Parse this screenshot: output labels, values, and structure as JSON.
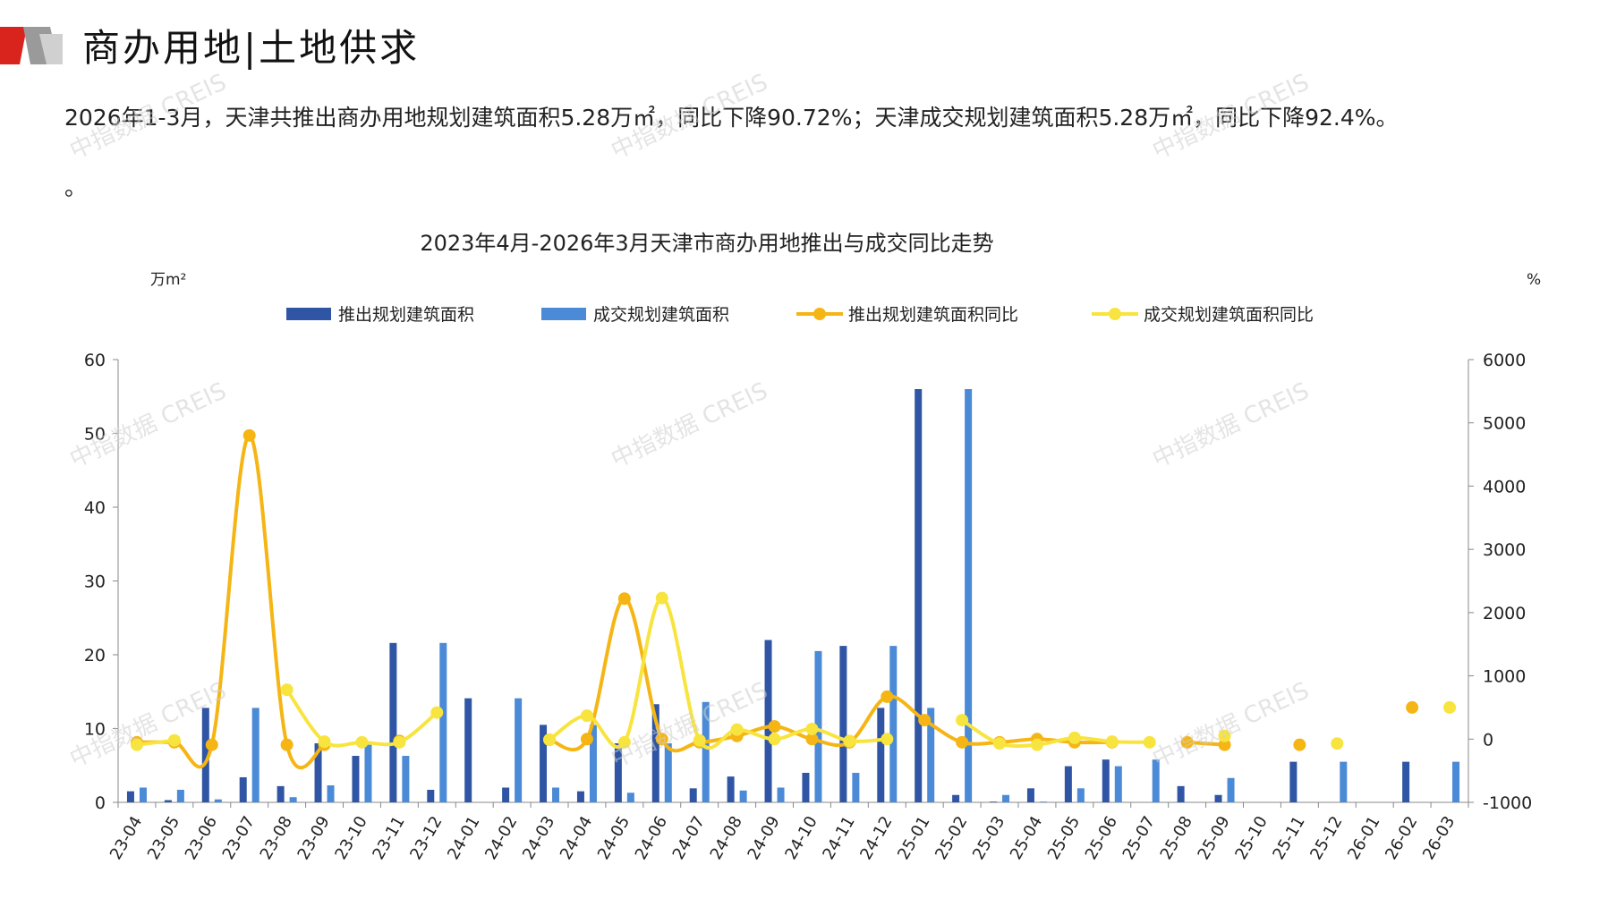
{
  "header": {
    "title": "商办用地|土地供求"
  },
  "summary": {
    "text": "2026年1-3月，天津共推出商办用地规划建筑面积5.28万㎡，同比下降90.72%；天津成交规划建筑面积5.28万㎡，同比下降92.4%。",
    "tail": "。"
  },
  "watermark": "中指数据 CREIS",
  "colors": {
    "supply": "#2f55a4",
    "deal": "#4a8ad6",
    "supply_yoy": "#f5b514",
    "deal_yoy": "#f8e43f",
    "brand": "#d9231d"
  },
  "chart_data": {
    "type": "bar",
    "title": "2023年4月-2026年3月天津市商办用地推出与成交同比走势",
    "ylabel_left": "万m²",
    "ylabel_right": "%",
    "ylim_left": [
      0,
      60
    ],
    "yticks_left": [
      "0",
      "10",
      "20",
      "30",
      "40",
      "50",
      "60"
    ],
    "ylim_right": [
      -1000,
      6000
    ],
    "yticks_right": [
      "-1000",
      "0",
      "1000",
      "2000",
      "3000",
      "4000",
      "5000",
      "6000"
    ],
    "legend_position": "top",
    "categories": [
      "23-04",
      "23-05",
      "23-06",
      "23-07",
      "23-08",
      "23-09",
      "23-10",
      "23-11",
      "23-12",
      "24-01",
      "24-02",
      "24-03",
      "24-04",
      "24-05",
      "24-06",
      "24-07",
      "24-08",
      "24-09",
      "24-10",
      "24-11",
      "24-12",
      "25-01",
      "25-02",
      "25-03",
      "25-04",
      "25-05",
      "25-06",
      "25-07",
      "25-08",
      "25-09",
      "25-10",
      "25-11",
      "25-12",
      "26-01",
      "26-02",
      "26-03"
    ],
    "series": [
      {
        "name": "推出规划建筑面积",
        "type": "bar",
        "axis": "left",
        "values": [
          1.5,
          0.3,
          12.8,
          3.4,
          2.2,
          8.0,
          6.3,
          21.6,
          1.7,
          14.1,
          2.0,
          10.5,
          1.5,
          8.0,
          13.3,
          1.9,
          3.5,
          22.0,
          4.0,
          21.2,
          12.8,
          56.0,
          1.0,
          0.1,
          1.9,
          4.9,
          5.8,
          0,
          2.2,
          1.0,
          0,
          5.5,
          0,
          0,
          5.5,
          0
        ]
      },
      {
        "name": "成交规划建筑面积",
        "type": "bar",
        "axis": "left",
        "values": [
          2.0,
          1.7,
          0.4,
          12.8,
          0.7,
          2.3,
          7.8,
          6.3,
          21.6,
          0,
          14.1,
          2.0,
          10.5,
          1.3,
          8.0,
          13.6,
          1.6,
          2.0,
          20.5,
          4.0,
          21.2,
          12.8,
          56.0,
          1.0,
          0.1,
          1.9,
          4.9,
          5.8,
          0,
          3.3,
          0,
          0,
          5.5,
          0,
          0,
          5.5
        ]
      },
      {
        "name": "推出规划建筑面积同比",
        "type": "line",
        "axis": "right",
        "values": [
          -50,
          -50,
          -90,
          4800,
          -90,
          -90,
          null,
          -30,
          null,
          null,
          null,
          -10,
          0,
          2220,
          0,
          -50,
          50,
          200,
          0,
          -50,
          670,
          300,
          -50,
          -50,
          0,
          -50,
          -50,
          null,
          -50,
          -90,
          null,
          -90,
          null,
          null,
          500,
          null
        ]
      },
      {
        "name": "成交规划建筑面积同比",
        "type": "line",
        "axis": "right",
        "values": [
          -90,
          -20,
          null,
          null,
          780,
          -40,
          -50,
          -50,
          420,
          null,
          null,
          -10,
          370,
          -50,
          2230,
          -20,
          150,
          0,
          160,
          -30,
          0,
          null,
          300,
          -70,
          -90,
          20,
          -40,
          -50,
          null,
          50,
          null,
          null,
          -70,
          null,
          null,
          500
        ]
      }
    ]
  }
}
